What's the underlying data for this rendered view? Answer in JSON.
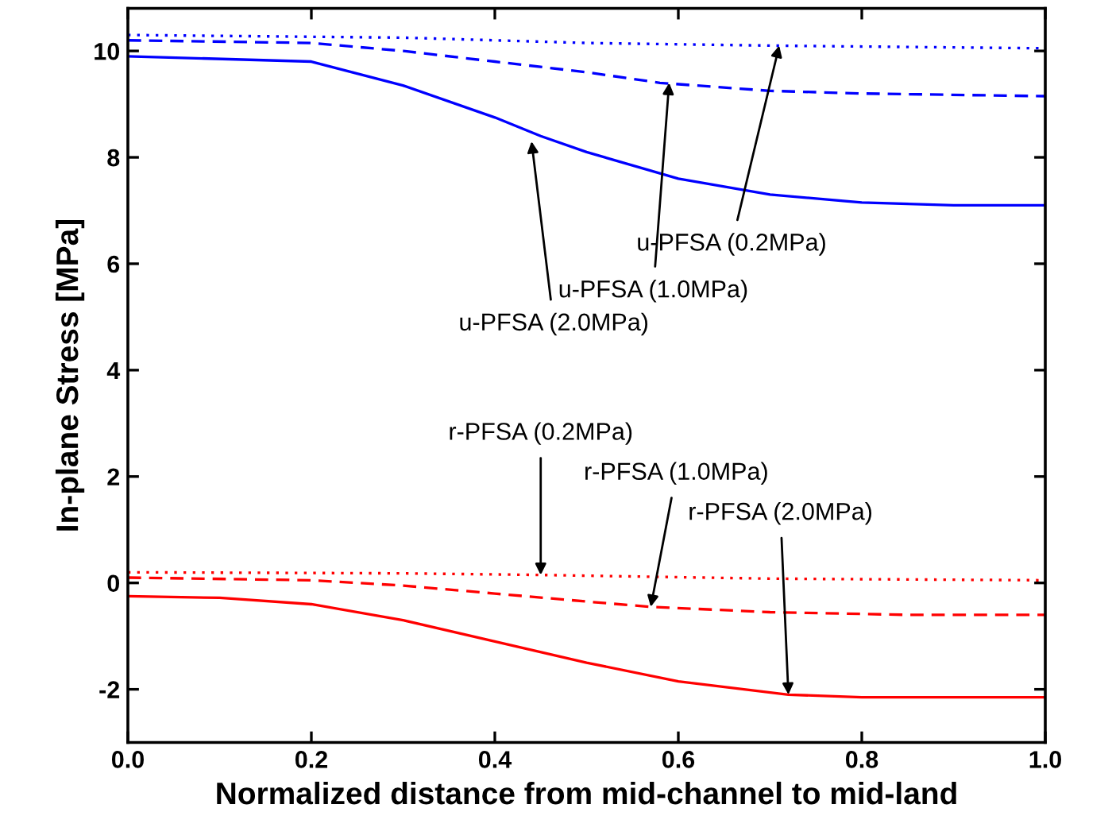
{
  "chart_data": {
    "type": "line",
    "xlabel": "Normalized distance from mid-channel to mid-land",
    "ylabel": "In-plane Stress [MPa]",
    "xlim": [
      0,
      1
    ],
    "ylim": [
      -3,
      10.8
    ],
    "xticks": [
      {
        "value": 0,
        "label": "0.0"
      },
      {
        "value": 0.2,
        "label": "0.2"
      },
      {
        "value": 0.4,
        "label": "0.4"
      },
      {
        "value": 0.6,
        "label": "0.6"
      },
      {
        "value": 0.8,
        "label": "0.8"
      },
      {
        "value": 1,
        "label": "1.0"
      }
    ],
    "yticks": [
      -2,
      0,
      2,
      4,
      6,
      8,
      10
    ],
    "series": [
      {
        "color": "#0000ff",
        "line_style": "dotted",
        "x": [
          0,
          0.3,
          0.5,
          0.7,
          1.0
        ],
        "values": [
          10.3,
          10.25,
          10.15,
          10.1,
          10.05
        ]
      },
      {
        "color": "#0000ff",
        "line_style": "dashed",
        "x": [
          0,
          0.2,
          0.3,
          0.4,
          0.5,
          0.58,
          0.7,
          0.8,
          1.0
        ],
        "values": [
          10.2,
          10.15,
          10.0,
          9.8,
          9.6,
          9.4,
          9.25,
          9.2,
          9.15
        ]
      },
      {
        "color": "#0000ff",
        "line_style": "solid",
        "x": [
          0,
          0.2,
          0.3,
          0.4,
          0.45,
          0.5,
          0.6,
          0.7,
          0.8,
          0.9,
          1.0
        ],
        "values": [
          9.9,
          9.8,
          9.35,
          8.75,
          8.4,
          8.1,
          7.6,
          7.3,
          7.15,
          7.1,
          7.1
        ]
      },
      {
        "color": "#ff0000",
        "line_style": "dotted",
        "x": [
          0,
          0.3,
          0.45,
          0.7,
          1.0
        ],
        "values": [
          0.2,
          0.18,
          0.15,
          0.08,
          0.05
        ]
      },
      {
        "color": "#ff0000",
        "line_style": "dashed",
        "x": [
          0,
          0.2,
          0.3,
          0.4,
          0.5,
          0.57,
          0.7,
          0.85,
          1.0
        ],
        "values": [
          0.1,
          0.05,
          -0.05,
          -0.2,
          -0.35,
          -0.45,
          -0.55,
          -0.6,
          -0.6
        ]
      },
      {
        "color": "#ff0000",
        "line_style": "solid",
        "x": [
          0,
          0.1,
          0.2,
          0.3,
          0.4,
          0.5,
          0.6,
          0.72,
          0.8,
          1.0
        ],
        "values": [
          -0.25,
          -0.28,
          -0.4,
          -0.7,
          -1.1,
          -1.5,
          -1.85,
          -2.1,
          -2.15,
          -2.15
        ]
      }
    ],
    "annotations": [
      {
        "text": "u-PFSA (0.2MPa)",
        "x": 0.71,
        "y": 10.1
      },
      {
        "text": "u-PFSA (1.0MPa)",
        "x": 0.59,
        "y": 9.4
      },
      {
        "text": "u-PFSA (2.0MPa)",
        "x": 0.44,
        "y": 8.3
      },
      {
        "text": "r-PFSA (0.2MPa)",
        "x": 0.45,
        "y": 0.15
      },
      {
        "text": "r-PFSA (1.0MPa)",
        "x": 0.57,
        "y": -0.45
      },
      {
        "text": "r-PFSA (2.0MPa)",
        "x": 0.72,
        "y": -2.1
      }
    ]
  }
}
